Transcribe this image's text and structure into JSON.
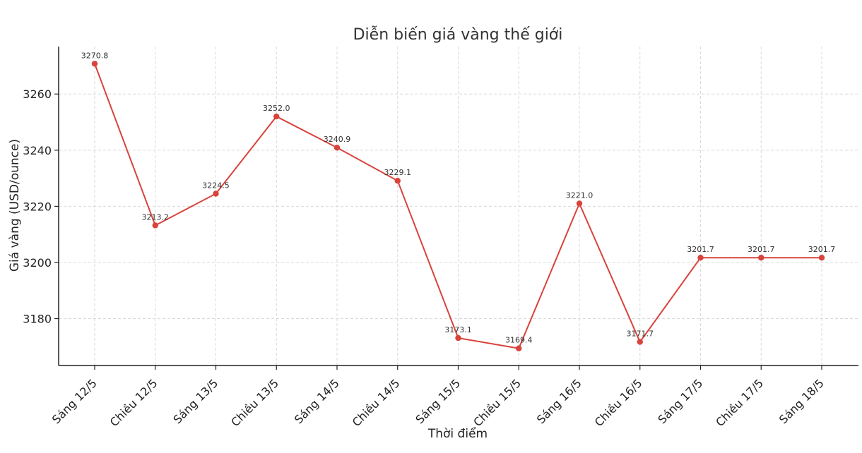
{
  "chart_data": {
    "type": "line",
    "title": "Diễn biến giá vàng thế giới",
    "xlabel": "Thời điểm",
    "ylabel": "Giá vàng (USD/ounce)",
    "categories": [
      "Sáng 12/5",
      "Chiều 12/5",
      "Sáng 13/5",
      "Chiều 13/5",
      "Sáng 14/5",
      "Chiều 14/5",
      "Sáng 15/5",
      "Chiều 15/5",
      "Sáng 16/5",
      "Chiều 16/5",
      "Sáng 17/5",
      "Chiều 17/5",
      "Sáng 18/5"
    ],
    "values": [
      3270.8,
      3213.2,
      3224.5,
      3252.0,
      3240.9,
      3229.1,
      3173.1,
      3169.4,
      3221.0,
      3171.7,
      3201.7,
      3201.7,
      3201.7
    ],
    "data_labels": [
      "3270.8",
      "3213.2",
      "3224.5",
      "3252.0",
      "3240.9",
      "3229.1",
      "3173.1",
      "3169.4",
      "3221.0",
      "3171.7",
      "3201.7",
      "3201.7",
      "3201.7"
    ],
    "yticks": [
      3180,
      3200,
      3220,
      3240,
      3260
    ],
    "ylim": [
      3163.3,
      3276.9
    ],
    "grid": true,
    "line_color": "#d9433b"
  }
}
